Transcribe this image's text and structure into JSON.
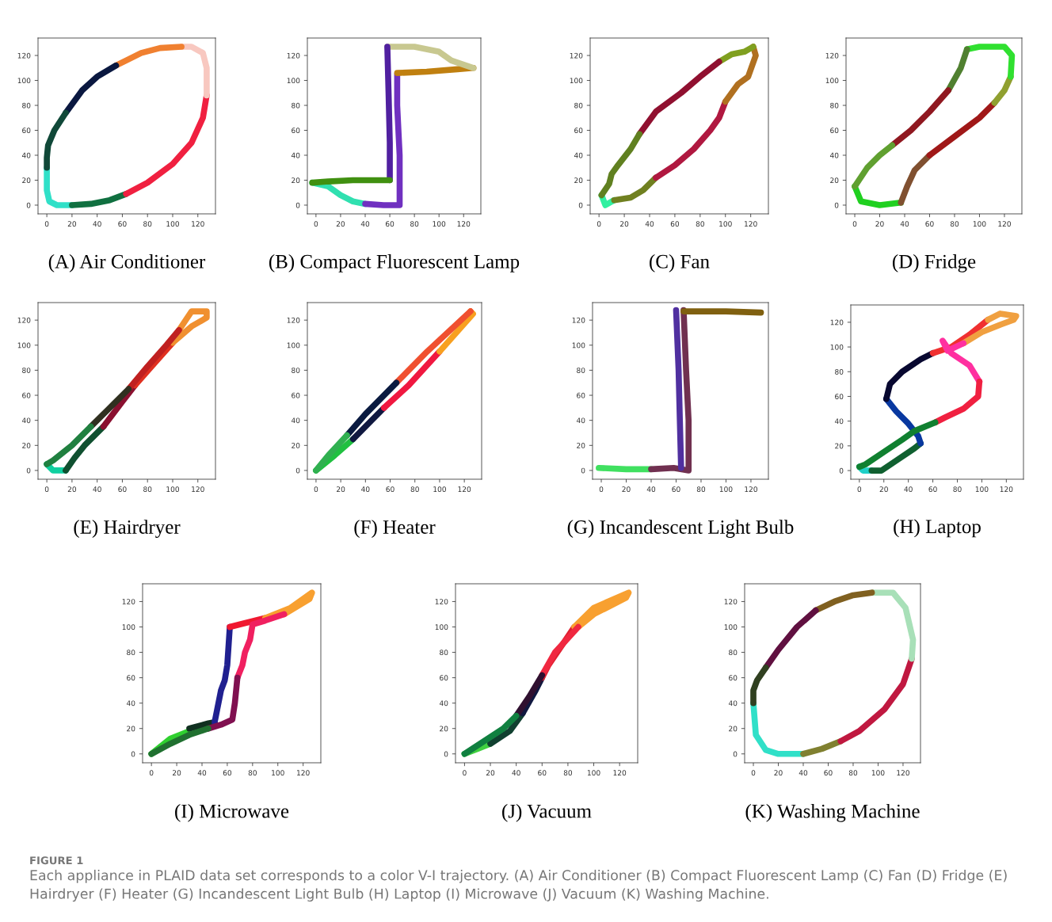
{
  "chart_data": [
    {
      "type": "line",
      "title": "(A) Air Conditioner",
      "xlim": [
        -7,
        134
      ],
      "ylim": [
        -7,
        134
      ],
      "xticks": [
        0,
        20,
        40,
        60,
        80,
        100,
        120
      ],
      "yticks": [
        0,
        20,
        40,
        60,
        80,
        100,
        120
      ],
      "line_style": "solid",
      "series": [
        {
          "color": "#30e0c8",
          "x": [
            0,
            0,
            2,
            8,
            20
          ],
          "values": [
            30,
            12,
            3,
            0,
            0
          ]
        },
        {
          "color": "#107040",
          "x": [
            20,
            35,
            50,
            63
          ],
          "values": [
            0,
            1,
            4,
            9
          ]
        },
        {
          "color": "#f02040",
          "x": [
            63,
            80,
            100,
            115,
            124,
            127
          ],
          "values": [
            9,
            18,
            33,
            50,
            70,
            88
          ]
        },
        {
          "color": "#f8c8c0",
          "x": [
            127,
            127,
            124,
            115,
            107
          ],
          "values": [
            88,
            110,
            122,
            127,
            127
          ]
        },
        {
          "color": "#f08030",
          "x": [
            107,
            90,
            75,
            63,
            55
          ],
          "values": [
            127,
            126,
            122,
            116,
            112
          ]
        },
        {
          "color": "#0a1840",
          "x": [
            55,
            40,
            28,
            15
          ],
          "values": [
            112,
            103,
            92,
            74
          ]
        },
        {
          "color": "#104838",
          "x": [
            15,
            6,
            1,
            0,
            0
          ],
          "values": [
            74,
            60,
            48,
            38,
            30
          ]
        }
      ]
    },
    {
      "type": "line",
      "title": "(B) Compact Fluorescent Lamp",
      "xlim": [
        -7,
        134
      ],
      "ylim": [
        -7,
        134
      ],
      "xticks": [
        0,
        20,
        40,
        60,
        80,
        100,
        120
      ],
      "yticks": [
        0,
        20,
        40,
        60,
        80,
        100,
        120
      ],
      "line_style": "solid",
      "series": [
        {
          "color": "#30e0b0",
          "x": [
            -3,
            10,
            20,
            30,
            40
          ],
          "values": [
            18,
            15,
            8,
            3,
            1
          ]
        },
        {
          "color": "#7030c0",
          "x": [
            40,
            55,
            68,
            68,
            66,
            66
          ],
          "values": [
            1,
            0,
            0,
            40,
            80,
            105
          ]
        },
        {
          "color": "#c08010",
          "x": [
            66,
            90,
            115,
            128
          ],
          "values": [
            106,
            107,
            109,
            110
          ]
        },
        {
          "color": "#c8c890",
          "x": [
            128,
            110,
            100,
            80,
            58
          ],
          "values": [
            110,
            116,
            123,
            127,
            127
          ]
        },
        {
          "color": "#5020a0",
          "x": [
            58,
            59,
            60,
            60
          ],
          "values": [
            127,
            90,
            50,
            20
          ]
        },
        {
          "color": "#409010",
          "x": [
            60,
            30,
            10,
            -3
          ],
          "values": [
            20,
            20,
            19,
            18
          ]
        }
      ]
    },
    {
      "type": "line",
      "title": "(C) Fan",
      "xlim": [
        -7,
        134
      ],
      "ylim": [
        -7,
        134
      ],
      "xticks": [
        0,
        20,
        40,
        60,
        80,
        100,
        120
      ],
      "yticks": [
        0,
        20,
        40,
        60,
        80,
        100,
        120
      ],
      "line_style": "solid",
      "series": [
        {
          "color": "#30f0a0",
          "x": [
            2,
            5,
            12
          ],
          "values": [
            8,
            0,
            4
          ]
        },
        {
          "color": "#708020",
          "x": [
            12,
            25,
            35,
            45
          ],
          "values": [
            4,
            6,
            12,
            22
          ]
        },
        {
          "color": "#b01840",
          "x": [
            45,
            60,
            75,
            88,
            95,
            100
          ],
          "values": [
            22,
            32,
            45,
            60,
            70,
            83
          ]
        },
        {
          "color": "#b07020",
          "x": [
            100,
            110,
            118,
            124,
            122
          ],
          "values": [
            83,
            97,
            103,
            120,
            127
          ]
        },
        {
          "color": "#80a020",
          "x": [
            122,
            115,
            105,
            95
          ],
          "values": [
            127,
            123,
            121,
            115
          ]
        },
        {
          "color": "#901030",
          "x": [
            95,
            80,
            65,
            45,
            32
          ],
          "values": [
            115,
            103,
            90,
            75,
            57
          ]
        },
        {
          "color": "#608020",
          "x": [
            32,
            25,
            15,
            10,
            8,
            2
          ],
          "values": [
            57,
            45,
            32,
            25,
            17,
            8
          ]
        }
      ]
    },
    {
      "type": "line",
      "title": "(D) Fridge",
      "xlim": [
        -7,
        134
      ],
      "ylim": [
        -7,
        134
      ],
      "xticks": [
        0,
        20,
        40,
        60,
        80,
        100,
        120
      ],
      "yticks": [
        0,
        20,
        40,
        60,
        80,
        100,
        120
      ],
      "line_style": "solid",
      "series": [
        {
          "color": "#20d020",
          "x": [
            0,
            5,
            20,
            37
          ],
          "values": [
            15,
            3,
            0,
            2
          ]
        },
        {
          "color": "#805030",
          "x": [
            37,
            42,
            48,
            60
          ],
          "values": [
            2,
            15,
            28,
            40
          ]
        },
        {
          "color": "#a01818",
          "x": [
            60,
            80,
            100,
            112
          ],
          "values": [
            40,
            55,
            70,
            82
          ]
        },
        {
          "color": "#90a030",
          "x": [
            112,
            120,
            125
          ],
          "values": [
            82,
            92,
            103
          ]
        },
        {
          "color": "#30e030",
          "x": [
            125,
            126,
            120,
            100,
            90
          ],
          "values": [
            103,
            120,
            127,
            127,
            125
          ]
        },
        {
          "color": "#508030",
          "x": [
            90,
            85,
            75
          ],
          "values": [
            125,
            110,
            92
          ]
        },
        {
          "color": "#901820",
          "x": [
            75,
            60,
            45,
            30
          ],
          "values": [
            92,
            75,
            60,
            48
          ]
        },
        {
          "color": "#60a030",
          "x": [
            30,
            20,
            10,
            0
          ],
          "values": [
            48,
            40,
            30,
            15
          ]
        }
      ]
    },
    {
      "type": "line",
      "title": "(E) Hairdryer",
      "xlim": [
        -7,
        134
      ],
      "ylim": [
        -7,
        134
      ],
      "xticks": [
        0,
        20,
        40,
        60,
        80,
        100,
        120
      ],
      "yticks": [
        0,
        20,
        40,
        60,
        80,
        100,
        120
      ],
      "line_style": "solid",
      "series": [
        {
          "color": "#10d0a0",
          "x": [
            0,
            5,
            15
          ],
          "values": [
            5,
            0,
            0
          ]
        },
        {
          "color": "#105030",
          "x": [
            15,
            22,
            30,
            45
          ],
          "values": [
            0,
            10,
            20,
            35
          ]
        },
        {
          "color": "#8a1030",
          "x": [
            45,
            60,
            70
          ],
          "values": [
            35,
            55,
            68
          ]
        },
        {
          "color": "#e03020",
          "x": [
            70,
            85,
            100
          ],
          "values": [
            68,
            85,
            102
          ]
        },
        {
          "color": "#f09030",
          "x": [
            100,
            115,
            127,
            127,
            115,
            105
          ],
          "values": [
            102,
            115,
            122,
            127,
            127,
            112
          ]
        },
        {
          "color": "#c02020",
          "x": [
            105,
            95,
            80,
            65
          ],
          "values": [
            112,
            100,
            83,
            65
          ]
        },
        {
          "color": "#303020",
          "x": [
            65,
            50,
            35
          ],
          "values": [
            65,
            50,
            35
          ]
        },
        {
          "color": "#208040",
          "x": [
            35,
            20,
            5,
            0
          ],
          "values": [
            35,
            20,
            8,
            5
          ]
        }
      ]
    },
    {
      "type": "line",
      "title": "(F) Heater",
      "xlim": [
        -7,
        134
      ],
      "ylim": [
        -7,
        134
      ],
      "xticks": [
        0,
        20,
        40,
        60,
        80,
        100,
        120
      ],
      "yticks": [
        0,
        20,
        40,
        60,
        80,
        100,
        120
      ],
      "line_style": "solid",
      "series": [
        {
          "color": "#20c040",
          "x": [
            0,
            15,
            30
          ],
          "values": [
            0,
            12,
            25
          ]
        },
        {
          "color": "#101840",
          "x": [
            30,
            45,
            55
          ],
          "values": [
            25,
            40,
            50
          ]
        },
        {
          "color": "#f01840",
          "x": [
            55,
            75,
            100
          ],
          "values": [
            50,
            68,
            95
          ]
        },
        {
          "color": "#f8a020",
          "x": [
            100,
            127,
            125
          ],
          "values": [
            95,
            125,
            127
          ]
        },
        {
          "color": "#f05030",
          "x": [
            125,
            90,
            65
          ],
          "values": [
            127,
            95,
            70
          ]
        },
        {
          "color": "#0a1a40",
          "x": [
            65,
            40,
            25
          ],
          "values": [
            70,
            45,
            28
          ]
        },
        {
          "color": "#30b050",
          "x": [
            25,
            10,
            0
          ],
          "values": [
            28,
            12,
            0
          ]
        }
      ]
    },
    {
      "type": "line",
      "title": "(G) Incandescent Light Bulb",
      "xlim": [
        -7,
        134
      ],
      "ylim": [
        -7,
        134
      ],
      "xticks": [
        0,
        20,
        40,
        60,
        80,
        100,
        120
      ],
      "yticks": [
        0,
        20,
        40,
        60,
        80,
        100,
        120
      ],
      "line_style": "solid",
      "series": [
        {
          "color": "#40e060",
          "x": [
            -2,
            20,
            40
          ],
          "values": [
            2,
            1,
            1
          ]
        },
        {
          "color": "#703050",
          "x": [
            40,
            58,
            70,
            70,
            68,
            66
          ],
          "values": [
            1,
            2,
            0,
            40,
            80,
            128
          ]
        },
        {
          "color": "#806010",
          "x": [
            66,
            100,
            128
          ],
          "values": [
            127,
            127,
            126
          ]
        },
        {
          "color": "#5030a0",
          "x": [
            60,
            62,
            63,
            64
          ],
          "values": [
            128,
            80,
            40,
            2
          ]
        }
      ]
    },
    {
      "type": "line",
      "title": "(H) Laptop",
      "xlim": [
        -7,
        134
      ],
      "ylim": [
        -7,
        134
      ],
      "xticks": [
        0,
        20,
        40,
        60,
        80,
        100,
        120
      ],
      "yticks": [
        0,
        20,
        40,
        60,
        80,
        100,
        120
      ],
      "line_style": "solid",
      "series": [
        {
          "color": "#20d0c8",
          "x": [
            0,
            3,
            10
          ],
          "values": [
            3,
            0,
            0
          ]
        },
        {
          "color": "#106030",
          "x": [
            10,
            18,
            30,
            45,
            50
          ],
          "values": [
            0,
            0,
            8,
            18,
            22
          ]
        },
        {
          "color": "#0838a0",
          "x": [
            50,
            48,
            40,
            30,
            22
          ],
          "values": [
            22,
            28,
            38,
            48,
            58
          ]
        },
        {
          "color": "#080830",
          "x": [
            22,
            25,
            35,
            50,
            60
          ],
          "values": [
            58,
            70,
            80,
            90,
            95
          ]
        },
        {
          "color": "#f03030",
          "x": [
            60,
            75,
            90,
            105
          ],
          "values": [
            95,
            100,
            110,
            122
          ]
        },
        {
          "color": "#f0a040",
          "x": [
            105,
            115,
            128,
            126,
            115,
            100,
            85
          ],
          "values": [
            122,
            127,
            125,
            122,
            118,
            112,
            103
          ]
        },
        {
          "color": "#ff30a0",
          "x": [
            85,
            72,
            68,
            75,
            90,
            98
          ],
          "values": [
            103,
            97,
            105,
            95,
            85,
            72
          ]
        },
        {
          "color": "#f02040",
          "x": [
            98,
            97,
            85,
            70,
            62
          ],
          "values": [
            72,
            60,
            50,
            43,
            39
          ]
        },
        {
          "color": "#108030",
          "x": [
            62,
            45,
            35,
            20,
            5,
            0
          ],
          "values": [
            39,
            32,
            25,
            15,
            5,
            3
          ]
        }
      ]
    },
    {
      "type": "line",
      "title": "(I) Microwave",
      "xlim": [
        -7,
        134
      ],
      "ylim": [
        -7,
        134
      ],
      "xticks": [
        0,
        20,
        40,
        60,
        80,
        100,
        120
      ],
      "yticks": [
        0,
        20,
        40,
        60,
        80,
        100,
        120
      ],
      "line_style": "solid",
      "series": [
        {
          "color": "#30d030",
          "x": [
            0,
            15,
            30
          ],
          "values": [
            0,
            12,
            18
          ]
        },
        {
          "color": "#103020",
          "x": [
            30,
            45,
            50
          ],
          "values": [
            20,
            24,
            25
          ]
        },
        {
          "color": "#202090",
          "x": [
            50,
            52,
            55,
            58,
            60,
            62
          ],
          "values": [
            25,
            35,
            50,
            58,
            70,
            100
          ]
        },
        {
          "color": "#f01830",
          "x": [
            62,
            70,
            90
          ],
          "values": [
            100,
            102,
            107
          ]
        },
        {
          "color": "#f8a030",
          "x": [
            90,
            110,
            127,
            125,
            105
          ],
          "values": [
            107,
            115,
            127,
            122,
            110
          ]
        },
        {
          "color": "#f02060",
          "x": [
            105,
            90,
            80,
            78,
            74,
            72,
            68
          ],
          "values": [
            110,
            105,
            102,
            90,
            80,
            70,
            60
          ]
        },
        {
          "color": "#801050",
          "x": [
            68,
            66,
            64,
            55,
            45
          ],
          "values": [
            60,
            40,
            27,
            23,
            20
          ]
        },
        {
          "color": "#207030",
          "x": [
            45,
            30,
            15,
            0
          ],
          "values": [
            20,
            15,
            8,
            0
          ]
        }
      ]
    },
    {
      "type": "line",
      "title": "(J) Vacuum",
      "xlim": [
        -7,
        134
      ],
      "ylim": [
        -7,
        134
      ],
      "xticks": [
        0,
        20,
        40,
        60,
        80,
        100,
        120
      ],
      "yticks": [
        0,
        20,
        40,
        60,
        80,
        100,
        120
      ],
      "line_style": "solid",
      "series": [
        {
          "color": "#40d040",
          "x": [
            0,
            10,
            20
          ],
          "values": [
            0,
            4,
            8
          ]
        },
        {
          "color": "#104030",
          "x": [
            20,
            35,
            45
          ],
          "values": [
            8,
            18,
            32
          ]
        },
        {
          "color": "#101840",
          "x": [
            45,
            55,
            60
          ],
          "values": [
            32,
            50,
            60
          ]
        },
        {
          "color": "#e02030",
          "x": [
            60,
            65,
            75,
            85
          ],
          "values": [
            60,
            70,
            85,
            100
          ]
        },
        {
          "color": "#f8a030",
          "x": [
            85,
            100,
            127,
            125,
            100,
            88
          ],
          "values": [
            100,
            115,
            127,
            123,
            110,
            100
          ]
        },
        {
          "color": "#f02840",
          "x": [
            88,
            70,
            60
          ],
          "values": [
            100,
            80,
            62
          ]
        },
        {
          "color": "#301030",
          "x": [
            60,
            50,
            40
          ],
          "values": [
            62,
            45,
            30
          ]
        },
        {
          "color": "#108040",
          "x": [
            40,
            30,
            15,
            0
          ],
          "values": [
            30,
            20,
            10,
            0
          ]
        }
      ]
    },
    {
      "type": "line",
      "title": "(K) Washing Machine",
      "xlim": [
        -7,
        134
      ],
      "ylim": [
        -7,
        134
      ],
      "xticks": [
        0,
        20,
        40,
        60,
        80,
        100,
        120
      ],
      "yticks": [
        0,
        20,
        40,
        60,
        80,
        100,
        120
      ],
      "line_style": "solid",
      "annotations": [
        "FIGURE 1",
        "Each appliance in PLAID data set corresponds to a color V-I trajectory. (A) Air Conditioner (B) Compact Fluorescent Lamp (C) Fan (D) Fridge (E) Hairdryer (F) Heater (G) Incandescent Light Bulb (H) Laptop (I) Microwave (J) Vacuum (K) Washing Machine."
      ],
      "series": [
        {
          "color": "#30e0c8",
          "x": [
            0,
            2,
            10,
            20,
            40
          ],
          "values": [
            40,
            15,
            3,
            0,
            0
          ]
        },
        {
          "color": "#808030",
          "x": [
            40,
            55,
            70
          ],
          "values": [
            0,
            4,
            10
          ]
        },
        {
          "color": "#c01840",
          "x": [
            70,
            85,
            105,
            120,
            127
          ],
          "values": [
            10,
            18,
            35,
            55,
            75
          ]
        },
        {
          "color": "#a8e0b8",
          "x": [
            127,
            128,
            122,
            112,
            95
          ],
          "values": [
            75,
            90,
            115,
            127,
            127
          ]
        },
        {
          "color": "#806020",
          "x": [
            95,
            80,
            65,
            50
          ],
          "values": [
            127,
            125,
            120,
            113
          ]
        },
        {
          "color": "#601040",
          "x": [
            50,
            35,
            20,
            10
          ],
          "values": [
            113,
            100,
            82,
            68
          ]
        },
        {
          "color": "#304020",
          "x": [
            10,
            3,
            0,
            0
          ],
          "values": [
            68,
            58,
            50,
            40
          ]
        }
      ]
    }
  ]
}
